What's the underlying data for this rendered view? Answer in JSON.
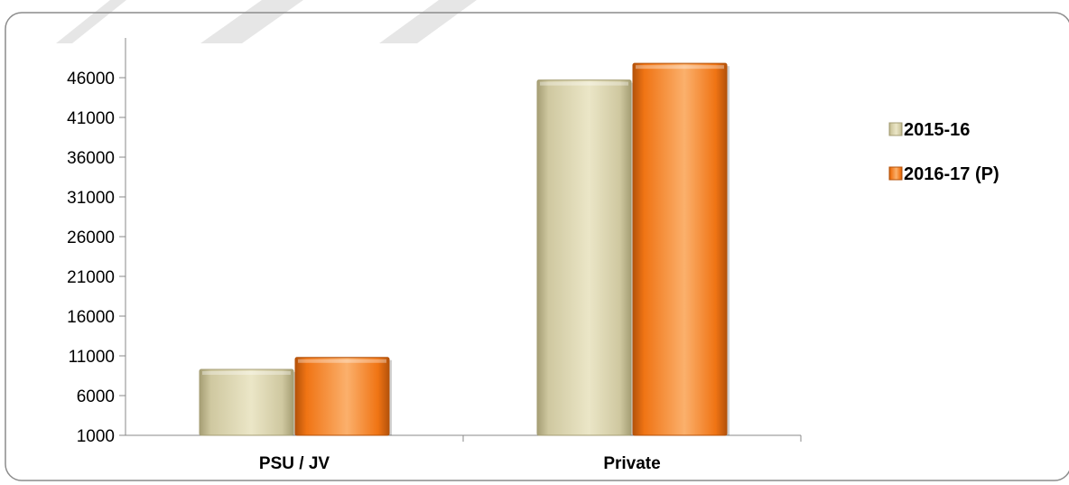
{
  "chart_data": {
    "type": "bar",
    "categories": [
      "PSU / JV",
      "Private"
    ],
    "series": [
      {
        "name": "2015-16",
        "values": [
          9300,
          45700
        ]
      },
      {
        "name": "2016-17 (P)",
        "values": [
          10800,
          47800
        ]
      }
    ],
    "ylim": [
      1000,
      51000
    ],
    "yticks": [
      1000,
      6000,
      11000,
      16000,
      21000,
      26000,
      31000,
      36000,
      41000,
      46000
    ],
    "grid": false,
    "legend": "right",
    "colors": {
      "series": [
        "#cfc8a0",
        "#f07414"
      ],
      "series_dark": [
        "#a59e74",
        "#b4520a"
      ],
      "series_light": [
        "#ebe6c7",
        "#fbb06c"
      ],
      "axis": "#888888",
      "frame": "#8c8c8c",
      "band": "#e6e6e6"
    }
  }
}
